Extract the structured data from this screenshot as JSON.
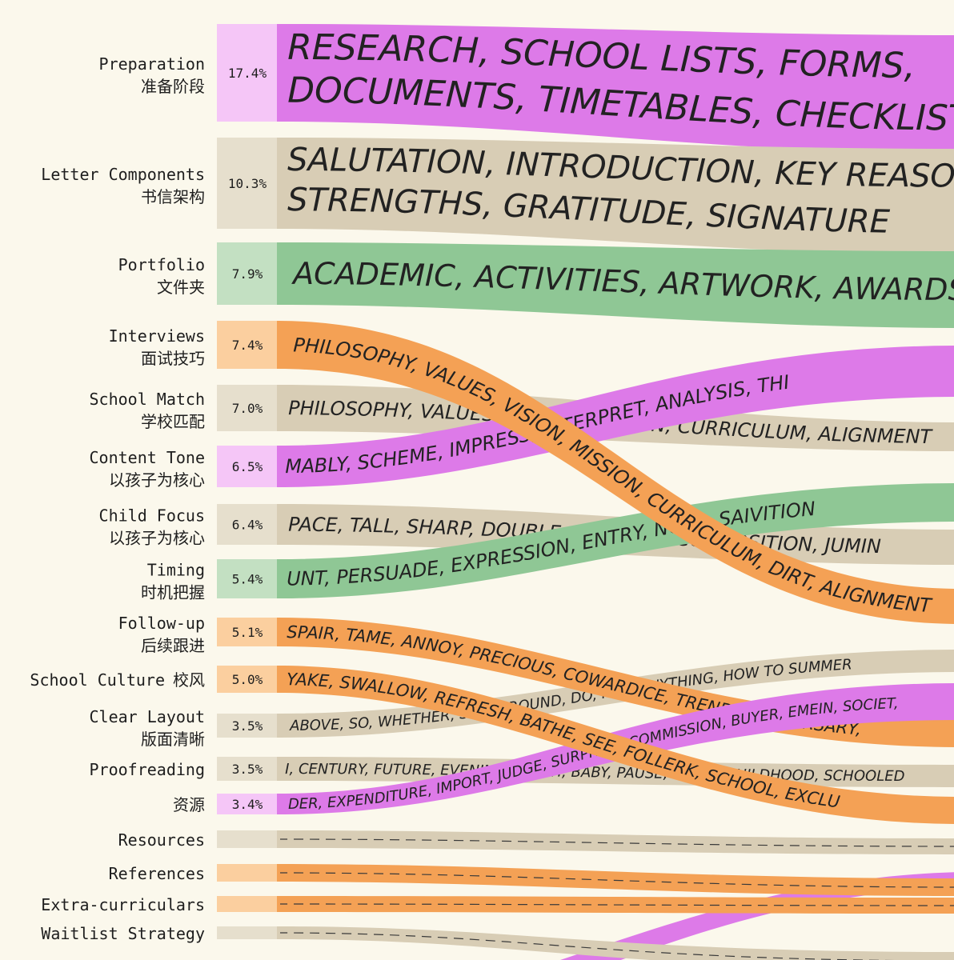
{
  "colors": {
    "magenta": "#dd7ae8",
    "beige": "#d8cdb5",
    "green": "#8fc795",
    "orange": "#f4a155",
    "magenta_light": "#f5c6f7",
    "beige_light": "#e6dfcd",
    "green_light": "#c3e0c2",
    "orange_light": "#fbcf9f",
    "background": "#fbf8ec"
  },
  "categories": [
    {
      "name": "Preparation",
      "name_zh": "准备阶段",
      "pct": "17.4%",
      "color": "magenta",
      "tags": "RESEARCH, SCHOOL LISTS, FORMS, DOCUMENTS, TIMETABLES, CHECKLISTS"
    },
    {
      "name": "Letter Components",
      "name_zh": "书信架构",
      "pct": "10.3%",
      "color": "beige",
      "tags": "SALUTATION, INTRODUCTION, KEY REASONS, STRENGTHS, GRATITUDE, SIGNATURE"
    },
    {
      "name": "Portfolio",
      "name_zh": "文件夹",
      "pct": "7.9%",
      "color": "green",
      "tags": "ACADEMIC, ACTIVITIES, ARTWORK, AWARDS, PHO"
    },
    {
      "name": "Interviews",
      "name_zh": "面试技巧",
      "pct": "7.4%",
      "color": "orange",
      "tags": "PHILOSOPHY, VALUES, VISION, MISSION, CURRICULUM, DIRT, ALIGNMENT"
    },
    {
      "name": "School Match",
      "name_zh": "学校匹配",
      "pct": "7.0%",
      "color": "beige",
      "tags": "PHILOSOPHY, VALUES, VISION, MISSION, CURRICULUM, ALIGNMENT"
    },
    {
      "name": "Content Tone",
      "name_zh": "以孩子为核心",
      "pct": "6.5%",
      "color": "magenta",
      "tags": "MABLY, SCHEME, IMPRESS, INTERPRET, ANALYSIS, THI"
    },
    {
      "name": "Child Focus",
      "name_zh": "以孩子为核心",
      "pct": "6.4%",
      "color": "beige",
      "tags": "PACE, TALL, SHARP, DOUBLE, AVERAGE, COMPOSITION, JUMIN"
    },
    {
      "name": "Timing",
      "name_zh": "时机把握",
      "pct": "5.4%",
      "color": "green",
      "tags": "UNT, PERSUADE, EXPRESSION, ENTRY, NOTE, SAIVITION"
    },
    {
      "name": "Follow-up",
      "name_zh": "后续跟进",
      "pct": "5.1%",
      "color": "orange",
      "tags": "SPAIR, TAME, ANNOY, PRECIOUS, COWARDICE, TREND, CONDERSARY,"
    },
    {
      "name": "School Culture",
      "name_zh": "校风",
      "pct": "5.0%",
      "color": "orange",
      "tags": "YAKE, SWALLOW, REFRESH, BATHE, SEE, FOLLERK, SCHOOL, EXCLU"
    },
    {
      "name": "Clear Layout",
      "name_zh": "版面清晰",
      "pct": "3.5%",
      "color": "beige",
      "tags": "ABOVE, SO, WHETHER, SUCH, ROUND, DO, NOT, ANYTHING, HOW TO SUMMER"
    },
    {
      "name": "Proofreading",
      "name_zh": "",
      "pct": "3.5%",
      "color": "beige",
      "tags": "I, CENTURY, FUTURE, EVENING, FRESH, BABY, PAUSE, NIGHT, CHILDHOOD, SCHOOLED"
    },
    {
      "name": "",
      "name_zh": "资源",
      "pct": "3.4%",
      "color": "magenta",
      "tags": "DER, EXPENDITURE, IMPORT, JUDGE, SURPRISE, COMMISSION, BUYER, EMEIN, SOCIET,"
    },
    {
      "name": "Resources",
      "name_zh": "",
      "pct": "",
      "color": "beige",
      "tags": ""
    },
    {
      "name": "References",
      "name_zh": "",
      "pct": "",
      "color": "orange",
      "tags": ""
    },
    {
      "name": "Extra-curriculars",
      "name_zh": "",
      "pct": "",
      "color": "orange",
      "tags": ""
    },
    {
      "name": "Waitlist Strategy",
      "name_zh": "",
      "pct": "",
      "color": "beige",
      "tags": ""
    }
  ]
}
